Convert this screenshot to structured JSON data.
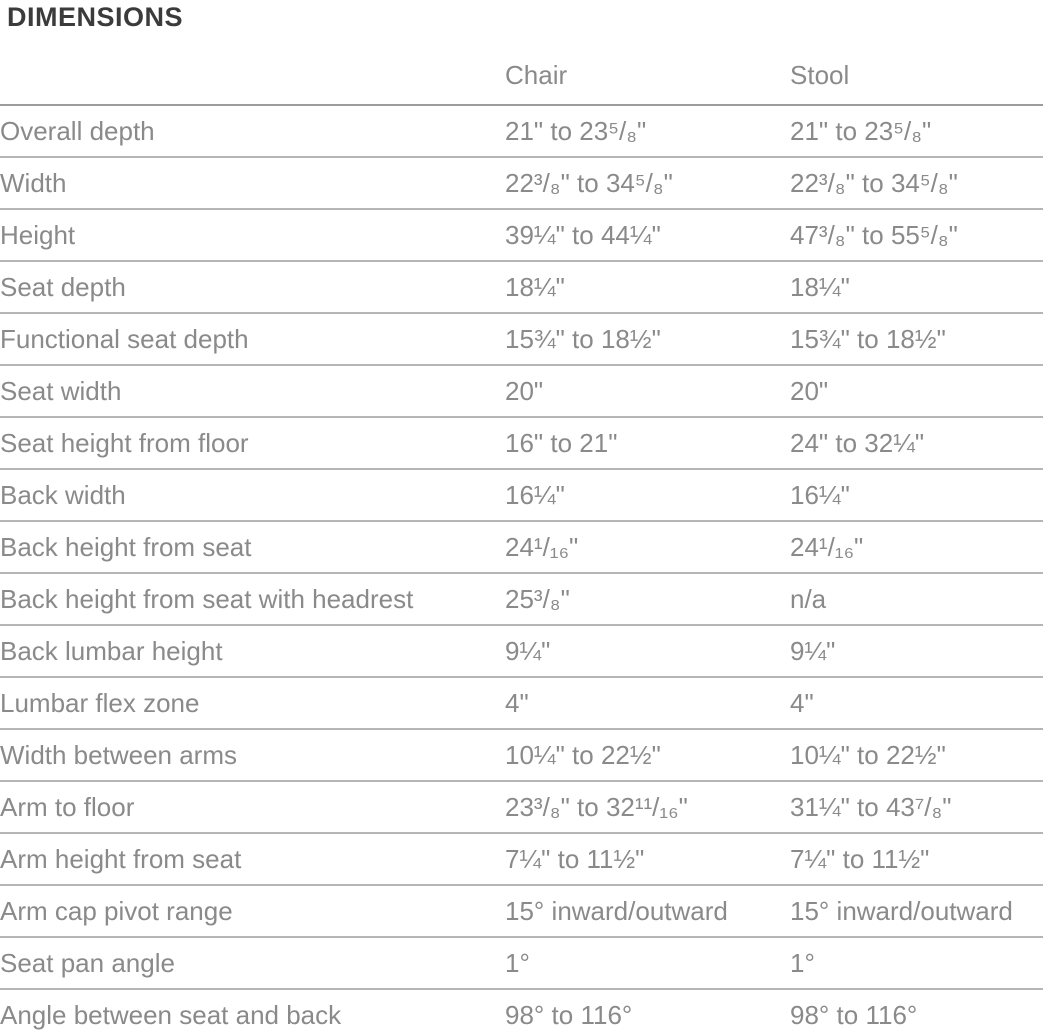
{
  "page": {
    "title": "DIMENSIONS"
  },
  "colors": {
    "background": "#ffffff",
    "title_text": "#3b3b3b",
    "body_text": "#8a8a8a",
    "header_rule": "#9c9c9c",
    "row_rule": "#b5b5b5"
  },
  "table": {
    "columns": [
      "",
      "Chair",
      "Stool"
    ],
    "rows": [
      {
        "label": "Overall depth",
        "chair": "21\" to 23⁵/₈\"",
        "stool": "21\" to 23⁵/₈\""
      },
      {
        "label": "Width",
        "chair": "22³/₈\" to 34⁵/₈\"",
        "stool": "22³/₈\" to 34⁵/₈\""
      },
      {
        "label": "Height",
        "chair": "39¼\" to 44¼\"",
        "stool": "47³/₈\" to 55⁵/₈\""
      },
      {
        "label": "Seat depth",
        "chair": "18¼\"",
        "stool": "18¼\""
      },
      {
        "label": "Functional seat depth",
        "chair": "15¾\" to 18½\"",
        "stool": "15¾\" to 18½\""
      },
      {
        "label": "Seat width",
        "chair": "20\"",
        "stool": "20\""
      },
      {
        "label": "Seat height from floor",
        "chair": "16\" to 21\"",
        "stool": "24\" to 32¼\""
      },
      {
        "label": "Back width",
        "chair": "16¼\"",
        "stool": "16¼\""
      },
      {
        "label": "Back height from seat",
        "chair": "24¹/₁₆\"",
        "stool": "24¹/₁₆\""
      },
      {
        "label": "Back height from seat with headrest",
        "chair": "25³/₈\"",
        "stool": "n/a"
      },
      {
        "label": "Back lumbar height",
        "chair": "9¼\"",
        "stool": "9¼\""
      },
      {
        "label": "Lumbar flex zone",
        "chair": "4\"",
        "stool": "4\""
      },
      {
        "label": "Width between arms",
        "chair": "10¼\" to 22½\"",
        "stool": "10¼\" to 22½\""
      },
      {
        "label": "Arm to floor",
        "chair": "23³/₈\" to 32¹¹/₁₆\"",
        "stool": "31¼\" to 43⁷/₈\""
      },
      {
        "label": "Arm height from seat",
        "chair": "7¼\" to 11½\"",
        "stool": "7¼\" to 11½\""
      },
      {
        "label": "Arm cap pivot range",
        "chair": "15° inward/outward",
        "stool": "15° inward/outward"
      },
      {
        "label": "Seat pan angle",
        "chair": "1°",
        "stool": "1°"
      },
      {
        "label": "Angle between seat and back",
        "chair": "98° to 116°",
        "stool": "98° to 116°"
      }
    ]
  }
}
